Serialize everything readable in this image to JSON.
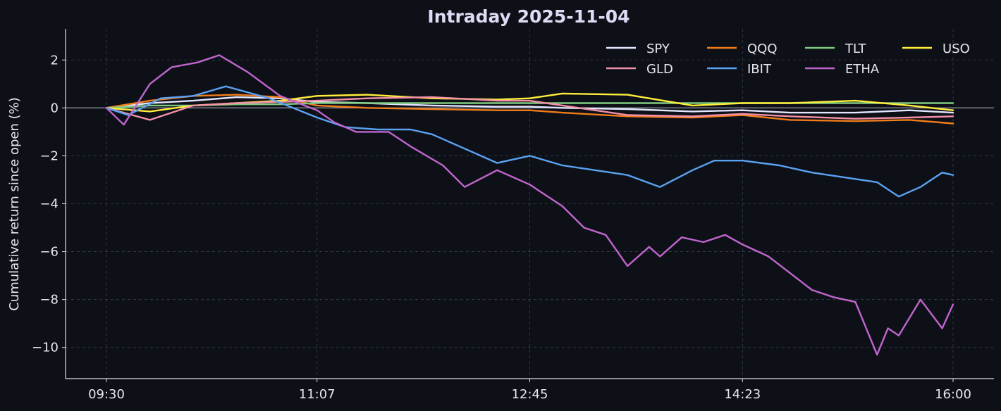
{
  "chart_data": {
    "type": "line",
    "title": "Intraday 2025-11-04",
    "xlabel": "",
    "ylabel": "Cumulative return since open (%)",
    "xlim": [
      "09:30",
      "16:00"
    ],
    "ylim": [
      -11.3,
      3.3
    ],
    "x_ticks": [
      "09:30",
      "11:07",
      "12:45",
      "14:23",
      "16:00"
    ],
    "y_ticks": [
      2,
      0,
      -2,
      -4,
      -6,
      -8,
      -10
    ],
    "y_tick_labels": [
      "2",
      "0",
      "−2",
      "−4",
      "−6",
      "−8",
      "−10"
    ],
    "grid": true,
    "zero_line": true,
    "legend": {
      "placement": "top-right",
      "columns": 4
    },
    "colors": {
      "background": "#0e1018",
      "axis": "#d9dce6",
      "grid": "#3a3f4e",
      "title": "#dcdcf5",
      "text": "#e6e8f0",
      "zero_line": "#8a8d96"
    },
    "series": [
      {
        "name": "SPY",
        "color": "#e4e6ff",
        "x": [
          "09:30",
          "09:50",
          "10:10",
          "10:30",
          "10:50",
          "11:07",
          "11:30",
          "12:00",
          "12:30",
          "12:45",
          "13:00",
          "13:30",
          "14:00",
          "14:23",
          "14:45",
          "15:15",
          "15:40",
          "16:00"
        ],
        "y": [
          0,
          0.2,
          0.3,
          0.45,
          0.4,
          0.25,
          0.2,
          0.1,
          0.05,
          0.05,
          0.0,
          -0.05,
          -0.15,
          -0.1,
          -0.2,
          -0.2,
          -0.1,
          -0.2
        ]
      },
      {
        "name": "QQQ",
        "color": "#f07d1a",
        "x": [
          "09:30",
          "09:50",
          "10:10",
          "10:30",
          "10:50",
          "11:07",
          "11:30",
          "12:00",
          "12:30",
          "12:45",
          "13:00",
          "13:30",
          "14:00",
          "14:23",
          "14:45",
          "15:15",
          "15:40",
          "16:00"
        ],
        "y": [
          0,
          0.3,
          0.5,
          0.55,
          0.45,
          0.1,
          0.0,
          -0.05,
          -0.1,
          -0.1,
          -0.2,
          -0.35,
          -0.4,
          -0.3,
          -0.5,
          -0.55,
          -0.5,
          -0.65
        ]
      },
      {
        "name": "TLT",
        "color": "#7fc97f",
        "x": [
          "09:30",
          "09:50",
          "10:10",
          "10:30",
          "10:50",
          "11:07",
          "11:30",
          "12:00",
          "12:30",
          "12:45",
          "13:00",
          "13:30",
          "14:00",
          "14:23",
          "14:45",
          "15:15",
          "15:40",
          "16:00"
        ],
        "y": [
          0,
          0.1,
          0.1,
          0.15,
          0.15,
          0.2,
          0.2,
          0.2,
          0.2,
          0.2,
          0.2,
          0.2,
          0.2,
          0.2,
          0.2,
          0.2,
          0.2,
          0.2
        ]
      },
      {
        "name": "USO",
        "color": "#ffef3a",
        "x": [
          "09:30",
          "09:50",
          "10:10",
          "10:30",
          "10:50",
          "11:07",
          "11:30",
          "12:00",
          "12:30",
          "12:45",
          "13:00",
          "13:30",
          "14:00",
          "14:23",
          "14:45",
          "15:15",
          "15:40",
          "16:00"
        ],
        "y": [
          0,
          -0.15,
          0.1,
          0.2,
          0.3,
          0.5,
          0.55,
          0.4,
          0.35,
          0.4,
          0.6,
          0.55,
          0.1,
          0.2,
          0.2,
          0.3,
          0.1,
          -0.1
        ]
      },
      {
        "name": "GLD",
        "color": "#f391a8",
        "x": [
          "09:30",
          "09:50",
          "10:10",
          "10:30",
          "10:50",
          "11:07",
          "11:30",
          "12:00",
          "12:30",
          "12:45",
          "13:00",
          "13:30",
          "14:00",
          "14:23",
          "14:45",
          "15:15",
          "15:40",
          "16:00"
        ],
        "y": [
          0,
          -0.5,
          0.1,
          0.2,
          0.25,
          0.3,
          0.4,
          0.45,
          0.3,
          0.3,
          0.1,
          -0.3,
          -0.35,
          -0.25,
          -0.35,
          -0.45,
          -0.4,
          -0.35
        ]
      },
      {
        "name": "IBIT",
        "color": "#5aa2f2",
        "x": [
          "09:30",
          "09:40",
          "09:55",
          "10:10",
          "10:25",
          "10:45",
          "11:07",
          "11:20",
          "11:35",
          "11:50",
          "12:00",
          "12:15",
          "12:30",
          "12:45",
          "13:00",
          "13:15",
          "13:30",
          "13:45",
          "14:00",
          "14:10",
          "14:23",
          "14:40",
          "14:55",
          "15:10",
          "15:25",
          "15:35",
          "15:45",
          "15:55",
          "16:00"
        ],
        "y": [
          0,
          -0.3,
          0.4,
          0.5,
          0.9,
          0.4,
          -0.4,
          -0.8,
          -0.9,
          -0.9,
          -1.1,
          -1.7,
          -2.3,
          -2.0,
          -2.4,
          -2.6,
          -2.8,
          -3.3,
          -2.6,
          -2.2,
          -2.2,
          -2.4,
          -2.7,
          -2.9,
          -3.1,
          -3.7,
          -3.3,
          -2.7,
          -2.8
        ]
      },
      {
        "name": "ETHA",
        "color": "#c065cd",
        "x": [
          "09:30",
          "09:38",
          "09:50",
          "10:00",
          "10:12",
          "10:22",
          "10:35",
          "10:50",
          "11:07",
          "11:15",
          "11:25",
          "11:40",
          "11:50",
          "12:05",
          "12:15",
          "12:30",
          "12:45",
          "13:00",
          "13:10",
          "13:20",
          "13:30",
          "13:40",
          "13:45",
          "13:55",
          "14:05",
          "14:15",
          "14:23",
          "14:35",
          "14:45",
          "14:55",
          "15:05",
          "15:15",
          "15:25",
          "15:30",
          "15:35",
          "15:45",
          "15:55",
          "16:00"
        ],
        "y": [
          0,
          -0.7,
          1.0,
          1.7,
          1.9,
          2.2,
          1.5,
          0.5,
          -0.1,
          -0.6,
          -1.0,
          -1.0,
          -1.6,
          -2.4,
          -3.3,
          -2.6,
          -3.2,
          -4.1,
          -5.0,
          -5.3,
          -6.6,
          -5.8,
          -6.2,
          -5.4,
          -5.6,
          -5.3,
          -5.7,
          -6.2,
          -6.9,
          -7.6,
          -7.9,
          -8.1,
          -10.3,
          -9.2,
          -9.5,
          -8.0,
          -9.2,
          -8.2
        ]
      }
    ]
  }
}
